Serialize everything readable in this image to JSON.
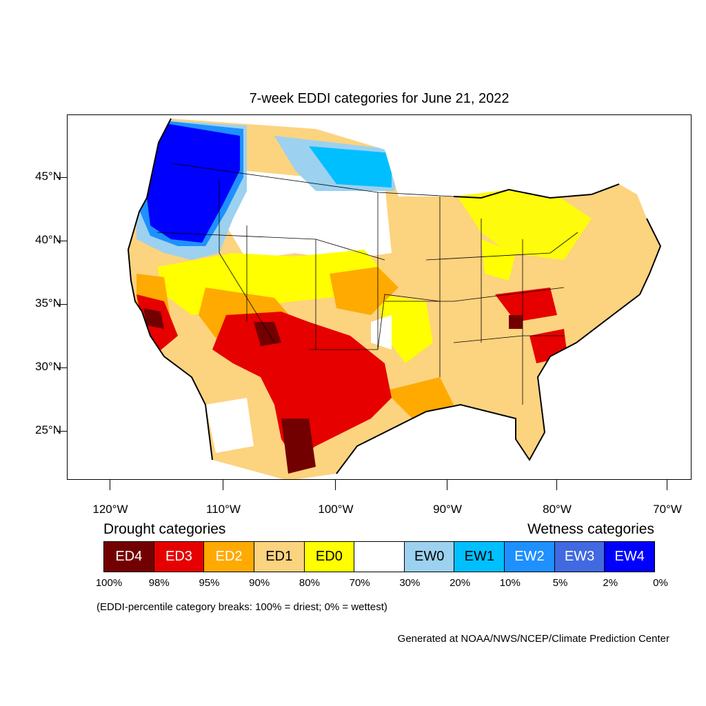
{
  "title": "7-week EDDI categories for June 21, 2022",
  "axes": {
    "y_labels": [
      "45°N",
      "40°N",
      "35°N",
      "30°N",
      "25°N"
    ],
    "x_labels": [
      "120°W",
      "110°W",
      "100°W",
      "90°W",
      "80°W",
      "70°W"
    ]
  },
  "legend": {
    "drought_heading": "Drought categories",
    "wetness_heading": "Wetness categories",
    "categories": [
      {
        "label": "ED4",
        "color": "#730000",
        "text_color": "#ffffff"
      },
      {
        "label": "ED3",
        "color": "#e60000",
        "text_color": "#ffffff"
      },
      {
        "label": "ED2",
        "color": "#ffaa00",
        "text_color": "#ffffff"
      },
      {
        "label": "ED1",
        "color": "#fcd37f",
        "text_color": "#000000"
      },
      {
        "label": "ED0",
        "color": "#ffff00",
        "text_color": "#000000"
      },
      {
        "label": "",
        "color": "#ffffff",
        "text_color": "#000000"
      },
      {
        "label": "EW0",
        "color": "#9cd1f0",
        "text_color": "#000000"
      },
      {
        "label": "EW1",
        "color": "#00bfff",
        "text_color": "#000000"
      },
      {
        "label": "EW2",
        "color": "#1e90ff",
        "text_color": "#ffffff"
      },
      {
        "label": "EW3",
        "color": "#4169e1",
        "text_color": "#ffffff"
      },
      {
        "label": "EW4",
        "color": "#0000ff",
        "text_color": "#ffffff"
      }
    ],
    "breaks": [
      "100%",
      "98%",
      "95%",
      "90%",
      "80%",
      "70%",
      "30%",
      "20%",
      "10%",
      "5%",
      "2%",
      "0%"
    ]
  },
  "note": "(EDDI-percentile category breaks: 100% = driest; 0% = wettest)",
  "credit": "Generated at NOAA/NWS/NCEP/Climate Prediction Center"
}
